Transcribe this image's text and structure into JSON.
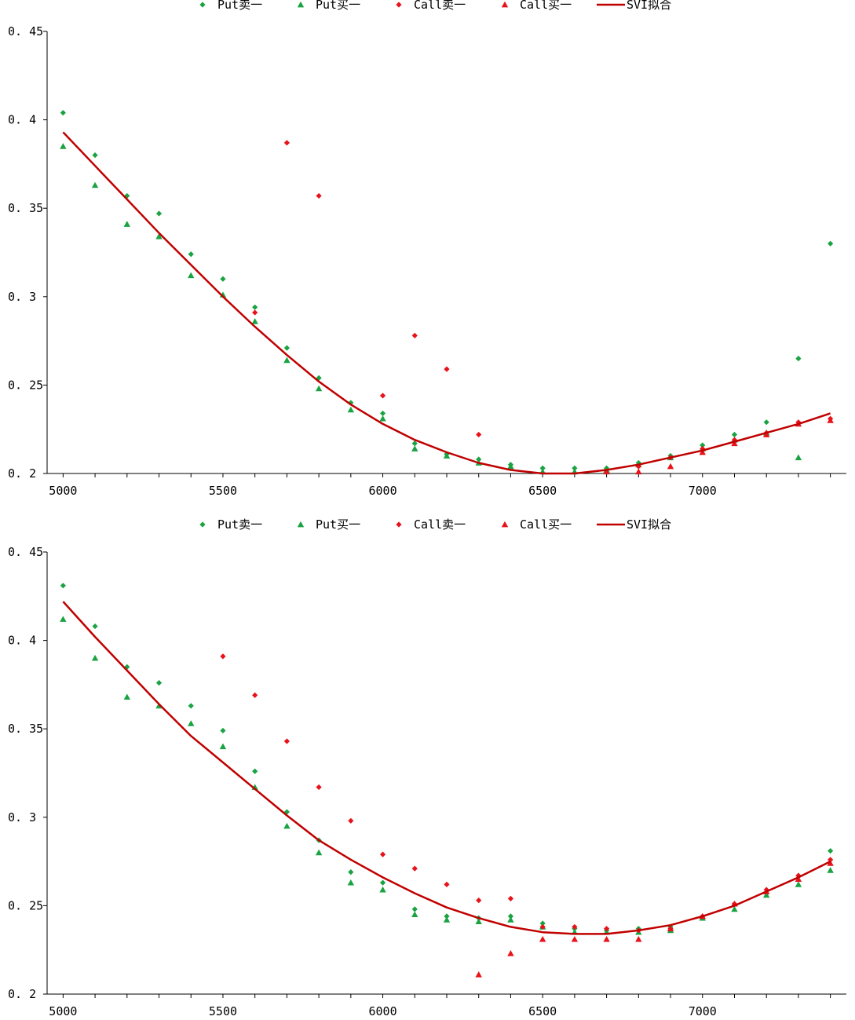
{
  "chart_data": [
    {
      "type": "scatter",
      "title": "",
      "xlabel": "",
      "ylabel": "",
      "xlim": [
        4950,
        7450
      ],
      "ylim": [
        0.2,
        0.45
      ],
      "x_ticks": [
        5000,
        5500,
        6000,
        6500,
        7000
      ],
      "y_ticks": [
        0.2,
        0.25,
        0.3,
        0.35,
        0.4,
        0.45
      ],
      "y_tick_labels": [
        "0. 2",
        "0. 25",
        "0. 3",
        "0. 35",
        "0. 4",
        "0. 45"
      ],
      "legend_position": "top-center",
      "series": [
        {
          "name": "Put卖一",
          "marker": "diamond",
          "color": "#1aa342",
          "points": [
            [
              5000,
              0.404
            ],
            [
              5100,
              0.38
            ],
            [
              5200,
              0.357
            ],
            [
              5300,
              0.347
            ],
            [
              5400,
              0.324
            ],
            [
              5500,
              0.31
            ],
            [
              5600,
              0.294
            ],
            [
              5700,
              0.271
            ],
            [
              5800,
              0.254
            ],
            [
              5900,
              0.24
            ],
            [
              6000,
              0.234
            ],
            [
              6100,
              0.217
            ],
            [
              6200,
              0.211
            ],
            [
              6300,
              0.208
            ],
            [
              6400,
              0.205
            ],
            [
              6500,
              0.203
            ],
            [
              6600,
              0.203
            ],
            [
              6700,
              0.203
            ],
            [
              6800,
              0.206
            ],
            [
              6900,
              0.21
            ],
            [
              7000,
              0.216
            ],
            [
              7100,
              0.222
            ],
            [
              7200,
              0.229
            ],
            [
              7300,
              0.265
            ],
            [
              7400,
              0.33
            ]
          ]
        },
        {
          "name": "Put买一",
          "marker": "triangle",
          "color": "#1aa342",
          "points": [
            [
              5000,
              0.385
            ],
            [
              5100,
              0.363
            ],
            [
              5200,
              0.341
            ],
            [
              5300,
              0.334
            ],
            [
              5400,
              0.312
            ],
            [
              5500,
              0.301
            ],
            [
              5600,
              0.286
            ],
            [
              5700,
              0.264
            ],
            [
              5800,
              0.248
            ],
            [
              5900,
              0.236
            ],
            [
              6000,
              0.231
            ],
            [
              6100,
              0.214
            ],
            [
              6200,
              0.21
            ],
            [
              6300,
              0.206
            ],
            [
              6400,
              0.204
            ],
            [
              6500,
              0.201
            ],
            [
              6600,
              0.201
            ],
            [
              6700,
              0.202
            ],
            [
              6800,
              0.205
            ],
            [
              6900,
              0.209
            ],
            [
              7000,
              0.214
            ],
            [
              7100,
              0.219
            ],
            [
              7200,
              0.223
            ],
            [
              7300,
              0.209
            ]
          ]
        },
        {
          "name": "Call卖一",
          "marker": "diamond",
          "color": "#e8121a",
          "points": [
            [
              5600,
              0.291
            ],
            [
              5700,
              0.387
            ],
            [
              5800,
              0.357
            ],
            [
              6000,
              0.244
            ],
            [
              6100,
              0.278
            ],
            [
              6200,
              0.259
            ],
            [
              6300,
              0.222
            ],
            [
              6800,
              0.204
            ],
            [
              6900,
              0.209
            ],
            [
              7000,
              0.214
            ],
            [
              7100,
              0.219
            ],
            [
              7200,
              0.223
            ],
            [
              7300,
              0.229
            ],
            [
              7400,
              0.231
            ]
          ]
        },
        {
          "name": "Call买一",
          "marker": "triangle",
          "color": "#e8121a",
          "points": [
            [
              6700,
              0.201
            ],
            [
              6800,
              0.201
            ],
            [
              6900,
              0.204
            ],
            [
              7000,
              0.212
            ],
            [
              7100,
              0.217
            ],
            [
              7200,
              0.222
            ],
            [
              7300,
              0.228
            ],
            [
              7400,
              0.23
            ]
          ]
        },
        {
          "name": "SVI拟合",
          "marker": "line",
          "color": "#c00000",
          "points": [
            [
              5000,
              0.393
            ],
            [
              5100,
              0.374
            ],
            [
              5200,
              0.355
            ],
            [
              5300,
              0.336
            ],
            [
              5400,
              0.318
            ],
            [
              5500,
              0.3
            ],
            [
              5600,
              0.283
            ],
            [
              5700,
              0.267
            ],
            [
              5800,
              0.252
            ],
            [
              5900,
              0.239
            ],
            [
              6000,
              0.228
            ],
            [
              6100,
              0.219
            ],
            [
              6200,
              0.212
            ],
            [
              6300,
              0.206
            ],
            [
              6400,
              0.202
            ],
            [
              6500,
              0.2
            ],
            [
              6600,
              0.2
            ],
            [
              6700,
              0.202
            ],
            [
              6800,
              0.205
            ],
            [
              6900,
              0.209
            ],
            [
              7000,
              0.213
            ],
            [
              7100,
              0.218
            ],
            [
              7200,
              0.223
            ],
            [
              7300,
              0.228
            ],
            [
              7400,
              0.234
            ]
          ]
        }
      ]
    },
    {
      "type": "scatter",
      "title": "",
      "xlabel": "",
      "ylabel": "",
      "xlim": [
        4950,
        7450
      ],
      "ylim": [
        0.2,
        0.45
      ],
      "x_ticks": [
        5000,
        5500,
        6000,
        6500,
        7000
      ],
      "y_ticks": [
        0.2,
        0.25,
        0.3,
        0.35,
        0.4,
        0.45
      ],
      "y_tick_labels": [
        "0. 2",
        "0. 25",
        "0. 3",
        "0. 35",
        "0. 4",
        "0. 45"
      ],
      "legend_position": "top-center",
      "series": [
        {
          "name": "Put卖一",
          "marker": "diamond",
          "color": "#1aa342",
          "points": [
            [
              5000,
              0.431
            ],
            [
              5100,
              0.408
            ],
            [
              5200,
              0.385
            ],
            [
              5300,
              0.376
            ],
            [
              5400,
              0.363
            ],
            [
              5500,
              0.349
            ],
            [
              5600,
              0.326
            ],
            [
              5700,
              0.303
            ],
            [
              5800,
              0.287
            ],
            [
              5900,
              0.269
            ],
            [
              6000,
              0.263
            ],
            [
              6100,
              0.248
            ],
            [
              6200,
              0.244
            ],
            [
              6300,
              0.243
            ],
            [
              6400,
              0.244
            ],
            [
              6500,
              0.24
            ],
            [
              6600,
              0.237
            ],
            [
              6700,
              0.236
            ],
            [
              6800,
              0.237
            ],
            [
              6900,
              0.238
            ],
            [
              7000,
              0.243
            ],
            [
              7100,
              0.251
            ],
            [
              7200,
              0.257
            ],
            [
              7300,
              0.267
            ],
            [
              7400,
              0.281
            ]
          ]
        },
        {
          "name": "Put买一",
          "marker": "triangle",
          "color": "#1aa342",
          "points": [
            [
              5000,
              0.412
            ],
            [
              5100,
              0.39
            ],
            [
              5200,
              0.368
            ],
            [
              5300,
              0.363
            ],
            [
              5400,
              0.353
            ],
            [
              5500,
              0.34
            ],
            [
              5600,
              0.317
            ],
            [
              5700,
              0.295
            ],
            [
              5800,
              0.28
            ],
            [
              5900,
              0.263
            ],
            [
              6000,
              0.259
            ],
            [
              6100,
              0.245
            ],
            [
              6200,
              0.242
            ],
            [
              6300,
              0.241
            ],
            [
              6400,
              0.242
            ],
            [
              6500,
              0.238
            ],
            [
              6600,
              0.235
            ],
            [
              6700,
              0.235
            ],
            [
              6800,
              0.235
            ],
            [
              6900,
              0.236
            ],
            [
              7000,
              0.243
            ],
            [
              7100,
              0.248
            ],
            [
              7200,
              0.256
            ],
            [
              7300,
              0.262
            ],
            [
              7400,
              0.27
            ]
          ]
        },
        {
          "name": "Call卖一",
          "marker": "diamond",
          "color": "#e8121a",
          "points": [
            [
              5500,
              0.391
            ],
            [
              5600,
              0.369
            ],
            [
              5700,
              0.343
            ],
            [
              5800,
              0.317
            ],
            [
              5900,
              0.298
            ],
            [
              6000,
              0.279
            ],
            [
              6100,
              0.271
            ],
            [
              6200,
              0.262
            ],
            [
              6300,
              0.253
            ],
            [
              6400,
              0.254
            ],
            [
              6500,
              0.238
            ],
            [
              6600,
              0.238
            ],
            [
              6700,
              0.237
            ],
            [
              6800,
              0.236
            ],
            [
              6900,
              0.237
            ],
            [
              7000,
              0.244
            ],
            [
              7100,
              0.251
            ],
            [
              7200,
              0.259
            ],
            [
              7300,
              0.267
            ],
            [
              7400,
              0.276
            ]
          ]
        },
        {
          "name": "Call买一",
          "marker": "triangle",
          "color": "#e8121a",
          "points": [
            [
              6300,
              0.211
            ],
            [
              6400,
              0.223
            ],
            [
              6500,
              0.231
            ],
            [
              6600,
              0.231
            ],
            [
              6700,
              0.231
            ],
            [
              6800,
              0.231
            ],
            [
              6900,
              0.237
            ],
            [
              7000,
              0.244
            ],
            [
              7100,
              0.251
            ],
            [
              7200,
              0.258
            ],
            [
              7300,
              0.265
            ],
            [
              7400,
              0.274
            ]
          ]
        },
        {
          "name": "SVI拟合",
          "marker": "line",
          "color": "#c00000",
          "points": [
            [
              5000,
              0.422
            ],
            [
              5100,
              0.402
            ],
            [
              5200,
              0.383
            ],
            [
              5300,
              0.364
            ],
            [
              5400,
              0.346
            ],
            [
              5500,
              0.331
            ],
            [
              5600,
              0.316
            ],
            [
              5700,
              0.301
            ],
            [
              5800,
              0.287
            ],
            [
              5900,
              0.276
            ],
            [
              6000,
              0.266
            ],
            [
              6100,
              0.257
            ],
            [
              6200,
              0.249
            ],
            [
              6300,
              0.243
            ],
            [
              6400,
              0.238
            ],
            [
              6500,
              0.235
            ],
            [
              6600,
              0.234
            ],
            [
              6700,
              0.234
            ],
            [
              6800,
              0.236
            ],
            [
              6900,
              0.239
            ],
            [
              7000,
              0.244
            ],
            [
              7100,
              0.25
            ],
            [
              7200,
              0.258
            ],
            [
              7300,
              0.266
            ],
            [
              7400,
              0.275
            ]
          ]
        }
      ]
    }
  ]
}
